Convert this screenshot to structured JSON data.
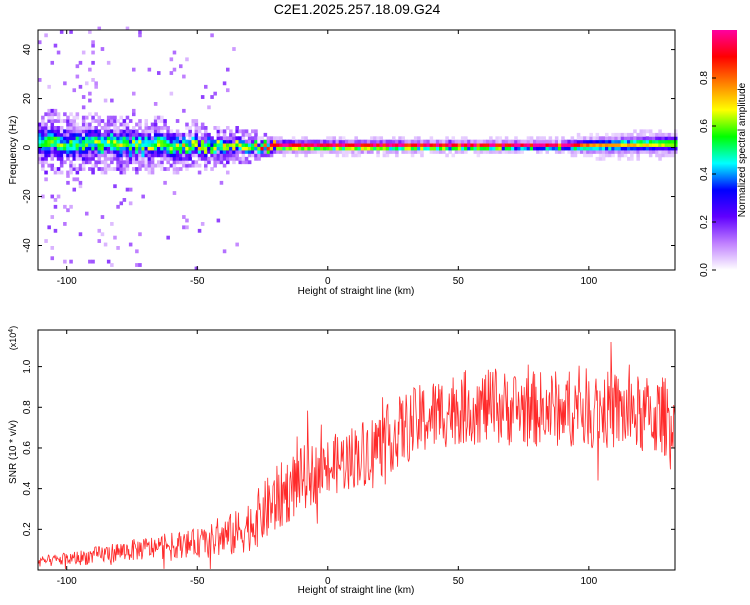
{
  "title": "C2E1.2025.257.18.09.G24",
  "chart_data": [
    {
      "type": "heatmap",
      "title": "C2E1.2025.257.18.09.G24",
      "xlabel": "Height of straight line (km)",
      "ylabel": "Frequency (Hz)",
      "xlim": [
        -111,
        133
      ],
      "ylim": [
        -50,
        48
      ],
      "x_ticks": [
        -100,
        -50,
        0,
        50,
        100
      ],
      "x_tick_labels": [
        "-100",
        "-50",
        "0",
        "50",
        "100"
      ],
      "y_ticks": [
        -40,
        -20,
        0,
        20,
        40
      ],
      "y_tick_labels": [
        "-40",
        "-20",
        "0",
        "20",
        "40"
      ],
      "colorbar": {
        "label": "Normalized spectral amplitude",
        "range": [
          0,
          1
        ],
        "ticks": [
          0.0,
          0.2,
          0.4,
          0.6,
          0.8
        ],
        "tick_labels": [
          "0.0",
          "0.2",
          "0.4",
          "0.6",
          "0.8"
        ],
        "colormap": [
          "#ffffff",
          "#c080ff",
          "#6000ff",
          "#0000ff",
          "#00ffff",
          "#00ff00",
          "#ffff00",
          "#ff8000",
          "#ff0000",
          "#ff00a0"
        ]
      },
      "ridge": {
        "description_free": true,
        "center_hz_points": [
          [
            -111,
            2
          ],
          [
            -90,
            1
          ],
          [
            -70,
            0
          ],
          [
            -50,
            0
          ],
          [
            -20,
            0
          ],
          [
            0,
            0
          ],
          [
            50,
            0
          ],
          [
            90,
            0
          ],
          [
            133,
            1
          ]
        ],
        "halfwidth_hz_points": [
          [
            -111,
            6
          ],
          [
            -60,
            5
          ],
          [
            -30,
            3
          ],
          [
            -20,
            2
          ],
          [
            90,
            1.5
          ],
          [
            100,
            2.5
          ],
          [
            133,
            3
          ]
        ],
        "peak_amplitude_points": [
          [
            -111,
            0.35
          ],
          [
            -60,
            0.4
          ],
          [
            -30,
            0.45
          ],
          [
            -20,
            0.9
          ],
          [
            90,
            0.95
          ],
          [
            100,
            0.6
          ],
          [
            133,
            0.5
          ]
        ]
      }
    },
    {
      "type": "line",
      "xlabel": "Height of straight line (km)",
      "ylabel": "SNR (10 * v/v)",
      "y_scale_label": "(x10",
      "y_scale_exp": "4",
      "y_scale_close": ")",
      "y_scale": 10000,
      "xlim": [
        -111,
        133
      ],
      "ylim": [
        0,
        1.18
      ],
      "x_ticks": [
        -100,
        -50,
        0,
        50,
        100
      ],
      "x_tick_labels": [
        "-100",
        "-50",
        "0",
        "50",
        "100"
      ],
      "y_ticks": [
        0.2,
        0.4,
        0.6,
        0.8,
        1.0
      ],
      "y_tick_labels": [
        "0.2",
        "0.4",
        "0.6",
        "0.8",
        "1.0"
      ],
      "series": [
        {
          "name": "SNR",
          "color": "#ff2a2a",
          "trend_points": [
            [
              -111,
              0.04
            ],
            [
              -95,
              0.06
            ],
            [
              -80,
              0.09
            ],
            [
              -60,
              0.12
            ],
            [
              -45,
              0.14
            ],
            [
              -35,
              0.18
            ],
            [
              -28,
              0.24
            ],
            [
              -20,
              0.34
            ],
            [
              -10,
              0.45
            ],
            [
              0,
              0.5
            ],
            [
              10,
              0.56
            ],
            [
              20,
              0.62
            ],
            [
              30,
              0.7
            ],
            [
              40,
              0.76
            ],
            [
              50,
              0.8
            ],
            [
              60,
              0.8
            ],
            [
              80,
              0.79
            ],
            [
              100,
              0.8
            ],
            [
              120,
              0.76
            ],
            [
              133,
              0.75
            ]
          ],
          "noise_points": [
            [
              -111,
              0.025
            ],
            [
              -80,
              0.05
            ],
            [
              -50,
              0.07
            ],
            [
              -30,
              0.13
            ],
            [
              -20,
              0.17
            ],
            [
              0,
              0.15
            ],
            [
              30,
              0.18
            ],
            [
              133,
              0.2
            ]
          ]
        }
      ]
    }
  ]
}
